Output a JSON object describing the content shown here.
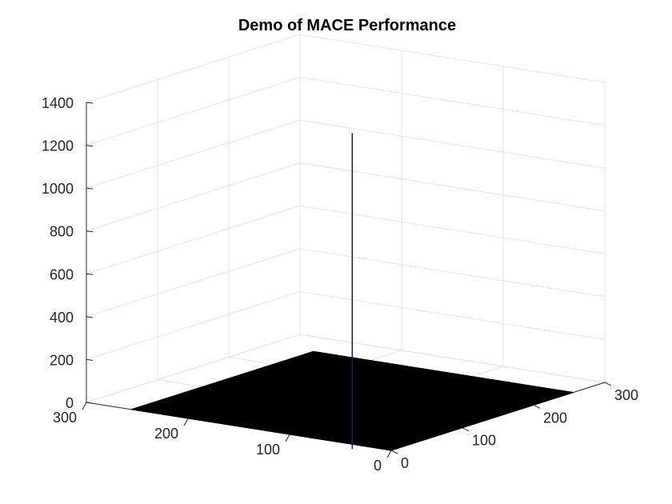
{
  "chart_data": {
    "type": "surface",
    "title": "Demo of MACE Performance",
    "xlabel": "",
    "ylabel": "",
    "zlabel": "",
    "xlim": [
      0,
      300
    ],
    "ylim": [
      0,
      300
    ],
    "zlim": [
      0,
      1400
    ],
    "x_ticks": [
      0,
      100,
      200,
      300
    ],
    "y_ticks": [
      0,
      100,
      200,
      300
    ],
    "z_ticks": [
      0,
      200,
      400,
      600,
      800,
      1000,
      1200,
      1400
    ],
    "surface_extent": {
      "x": [
        0,
        256
      ],
      "y": [
        0,
        256
      ]
    },
    "baseline_z": 0,
    "peak": {
      "x": 128,
      "y": 128,
      "z": 1250
    },
    "grid": true,
    "colors": {
      "surface": "#000000",
      "peak": "#1f1f5a",
      "axis": "#262626",
      "grid": "#e3e3e3",
      "text": "#262626"
    }
  }
}
